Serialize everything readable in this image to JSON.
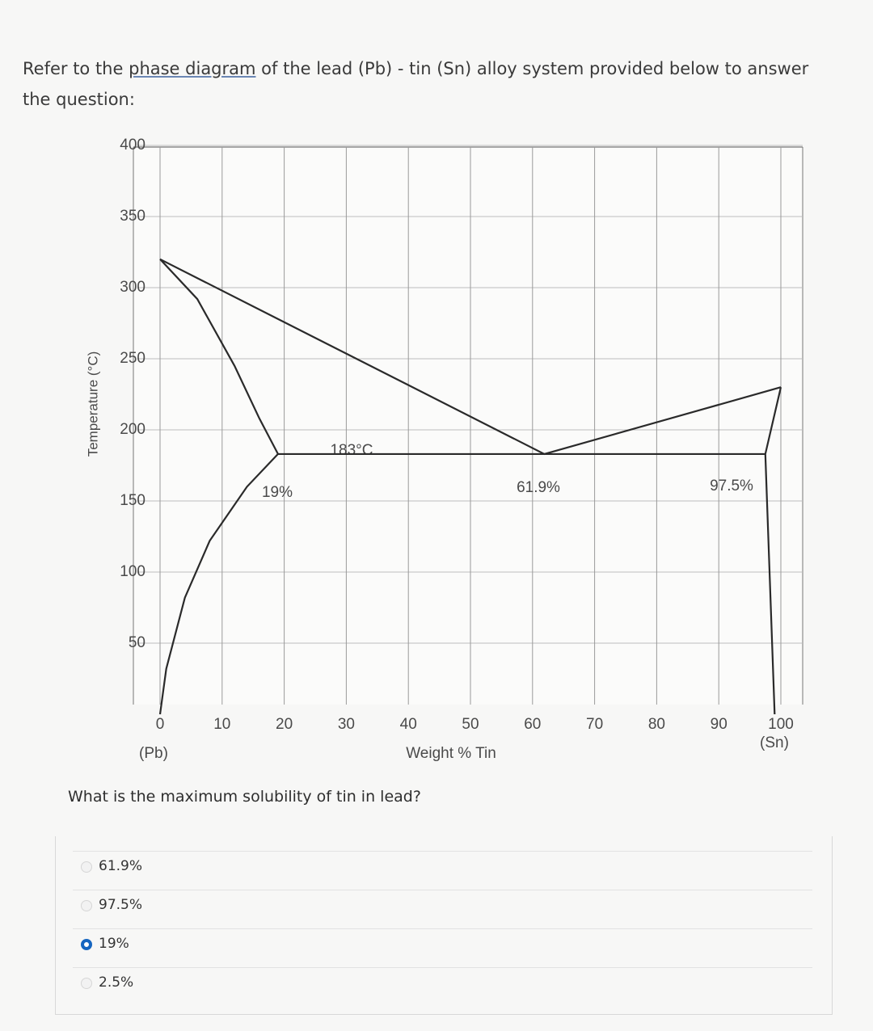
{
  "intro": {
    "before": "Refer to the",
    "link": "phase diagram",
    "after": "of the lead (Pb) - tin (Sn) alloy system provided below to answer the question:"
  },
  "diagram": {
    "type": "line",
    "y_label": "Temperature (°C)",
    "x_label": "Weight % Tin",
    "x_end_labels": [
      "(Pb)",
      "(Sn)"
    ],
    "annotations": [
      "183°C",
      "19%",
      "61.9%",
      "97.5%"
    ],
    "xlim": [
      0,
      100
    ],
    "ylim": [
      0,
      400
    ],
    "xticks": [
      0,
      10,
      20,
      30,
      40,
      50,
      60,
      70,
      80,
      90,
      100
    ],
    "yticks": [
      50,
      100,
      150,
      200,
      250,
      300,
      350,
      400
    ],
    "grid": true,
    "series": [
      {
        "color": "#2a2a2a",
        "x": [
          0,
          61.9,
          100
        ],
        "values": [
          320,
          183,
          230
        ]
      },
      {
        "color": "#2a2a2a",
        "x": [
          0,
          6,
          12,
          16,
          19
        ],
        "values": [
          320,
          292,
          245,
          208,
          183
        ]
      },
      {
        "color": "#2a2a2a",
        "x": [
          19,
          14,
          8,
          4,
          1,
          0
        ],
        "values": [
          183,
          160,
          122,
          82,
          32,
          0
        ]
      },
      {
        "color": "#2a2a2a",
        "x": [
          19,
          97.5
        ],
        "values": [
          183,
          183
        ]
      },
      {
        "color": "#2a2a2a",
        "x": [
          100,
          97.5,
          99
        ],
        "values": [
          230,
          183,
          0
        ]
      }
    ]
  },
  "question": "What is the maximum solubility of tin in lead?",
  "options": [
    "61.9%",
    "97.5%",
    "19%",
    "2.5%"
  ],
  "selected": 2
}
